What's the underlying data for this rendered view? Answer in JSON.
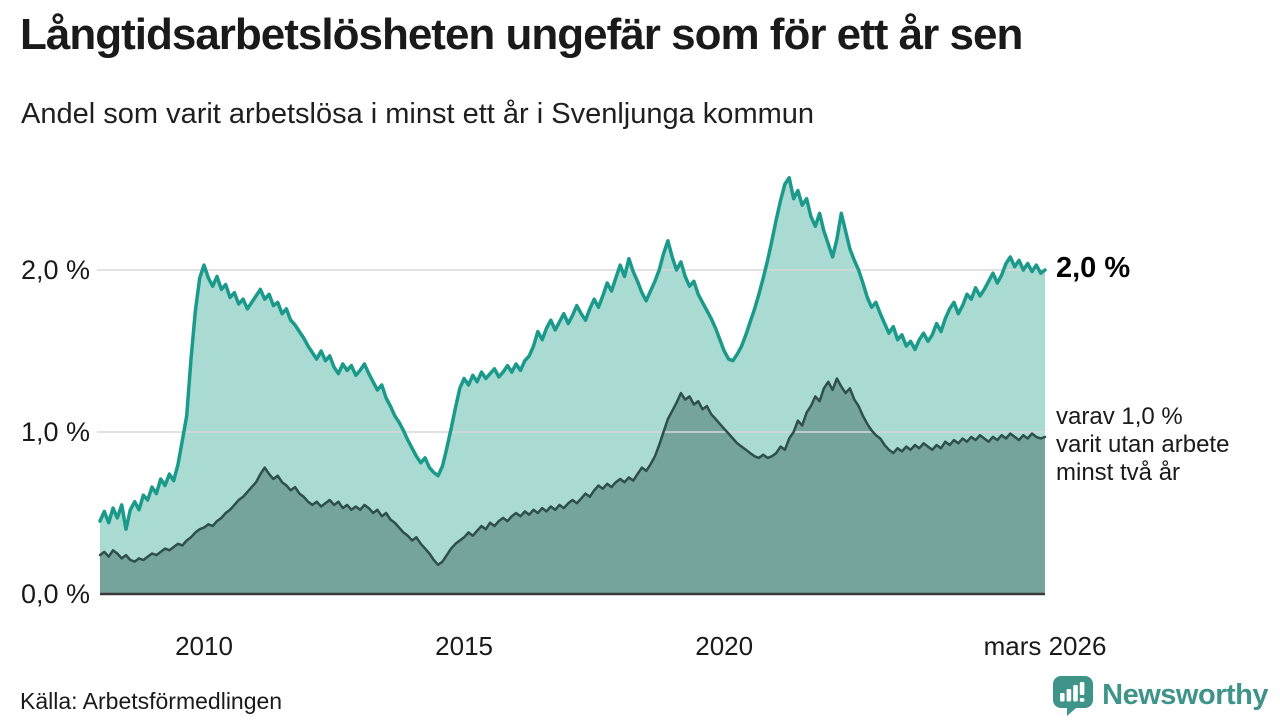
{
  "header": {
    "title": "Långtidsarbetslösheten ungefär som för ett år sen",
    "subtitle": "Andel som varit arbetslösa i minst ett år i Svenljunga kommun"
  },
  "annotations": {
    "end_value_label": "2,0 %",
    "secondary_label_lines": [
      "varav 1,0 %",
      "varit utan arbete",
      "minst två år"
    ]
  },
  "footer": {
    "source": "Källa: Arbetsförmedlingen",
    "brand": "Newsworthy"
  },
  "colors": {
    "series1_line": "#1b9a8b",
    "series1_fill": "#aadbd3",
    "series2_line": "#2e4f4b",
    "series2_fill": "#75a49d",
    "gridline": "#d8d8d8",
    "baseline": "#3a3a3a",
    "brand_teal": "#3f948a",
    "text": "#1a1a1a"
  },
  "chart_data": {
    "type": "area",
    "title": "Långtidsarbetslösheten ungefär som för ett år sen",
    "x_domain": [
      "2008-01",
      "2026-03"
    ],
    "x_unit": "month",
    "ylim": [
      0,
      2.68
    ],
    "grid": "horizontal",
    "y_ticks": [
      {
        "label": "0,0 %",
        "value": 0.0
      },
      {
        "label": "1,0 %",
        "value": 1.0
      },
      {
        "label": "2,0 %",
        "value": 2.0
      }
    ],
    "x_ticks": [
      {
        "label": "2010",
        "month_index": 24
      },
      {
        "label": "2015",
        "month_index": 84
      },
      {
        "label": "2020",
        "month_index": 144
      },
      {
        "label": "mars 2026",
        "month_index": 218
      }
    ],
    "series": [
      {
        "name": "Andel som varit arbetslösa i minst ett år",
        "end_value": 2.0,
        "values": [
          0.45,
          0.51,
          0.44,
          0.53,
          0.47,
          0.55,
          0.4,
          0.52,
          0.57,
          0.52,
          0.61,
          0.58,
          0.66,
          0.62,
          0.71,
          0.67,
          0.74,
          0.7,
          0.8,
          0.95,
          1.1,
          1.45,
          1.75,
          1.95,
          2.03,
          1.95,
          1.9,
          1.96,
          1.88,
          1.91,
          1.83,
          1.86,
          1.79,
          1.82,
          1.76,
          1.8,
          1.84,
          1.88,
          1.82,
          1.85,
          1.78,
          1.8,
          1.73,
          1.76,
          1.69,
          1.66,
          1.62,
          1.58,
          1.53,
          1.49,
          1.45,
          1.5,
          1.44,
          1.47,
          1.4,
          1.36,
          1.42,
          1.38,
          1.41,
          1.35,
          1.38,
          1.42,
          1.36,
          1.31,
          1.26,
          1.29,
          1.21,
          1.16,
          1.1,
          1.06,
          1.01,
          0.95,
          0.9,
          0.85,
          0.81,
          0.84,
          0.78,
          0.75,
          0.73,
          0.79,
          0.9,
          1.02,
          1.15,
          1.27,
          1.33,
          1.29,
          1.35,
          1.31,
          1.37,
          1.33,
          1.36,
          1.39,
          1.34,
          1.37,
          1.41,
          1.37,
          1.42,
          1.38,
          1.44,
          1.47,
          1.53,
          1.62,
          1.57,
          1.64,
          1.69,
          1.63,
          1.68,
          1.73,
          1.67,
          1.72,
          1.78,
          1.73,
          1.69,
          1.76,
          1.82,
          1.77,
          1.84,
          1.92,
          1.87,
          1.95,
          2.03,
          1.96,
          2.07,
          1.99,
          1.93,
          1.86,
          1.81,
          1.87,
          1.93,
          2.0,
          2.1,
          2.18,
          2.08,
          2.0,
          2.05,
          1.96,
          1.9,
          1.93,
          1.85,
          1.8,
          1.75,
          1.7,
          1.64,
          1.57,
          1.5,
          1.45,
          1.44,
          1.48,
          1.53,
          1.6,
          1.68,
          1.76,
          1.85,
          1.95,
          2.06,
          2.18,
          2.31,
          2.43,
          2.53,
          2.57,
          2.44,
          2.49,
          2.4,
          2.44,
          2.33,
          2.27,
          2.35,
          2.24,
          2.16,
          2.08,
          2.19,
          2.35,
          2.24,
          2.13,
          2.06,
          2.0,
          1.92,
          1.83,
          1.77,
          1.8,
          1.73,
          1.67,
          1.61,
          1.65,
          1.57,
          1.6,
          1.53,
          1.56,
          1.51,
          1.57,
          1.61,
          1.56,
          1.6,
          1.67,
          1.62,
          1.7,
          1.76,
          1.8,
          1.73,
          1.78,
          1.85,
          1.82,
          1.89,
          1.84,
          1.88,
          1.93,
          1.98,
          1.92,
          1.97,
          2.04,
          2.08,
          2.02,
          2.06,
          2.0,
          2.04,
          1.99,
          2.03,
          1.98,
          2.0
        ]
      },
      {
        "name": "varav varit utan arbete minst två år",
        "end_value": 1.0,
        "values": [
          0.24,
          0.26,
          0.23,
          0.27,
          0.25,
          0.22,
          0.24,
          0.21,
          0.2,
          0.22,
          0.21,
          0.23,
          0.25,
          0.24,
          0.26,
          0.28,
          0.27,
          0.29,
          0.31,
          0.3,
          0.33,
          0.35,
          0.38,
          0.4,
          0.41,
          0.43,
          0.42,
          0.45,
          0.47,
          0.5,
          0.52,
          0.55,
          0.58,
          0.6,
          0.63,
          0.66,
          0.69,
          0.74,
          0.78,
          0.74,
          0.71,
          0.73,
          0.69,
          0.67,
          0.64,
          0.66,
          0.62,
          0.6,
          0.57,
          0.55,
          0.57,
          0.54,
          0.56,
          0.58,
          0.55,
          0.57,
          0.53,
          0.55,
          0.52,
          0.54,
          0.52,
          0.55,
          0.53,
          0.5,
          0.52,
          0.48,
          0.5,
          0.46,
          0.44,
          0.41,
          0.38,
          0.36,
          0.33,
          0.35,
          0.31,
          0.28,
          0.25,
          0.21,
          0.18,
          0.2,
          0.24,
          0.28,
          0.31,
          0.33,
          0.35,
          0.38,
          0.36,
          0.39,
          0.42,
          0.4,
          0.44,
          0.42,
          0.45,
          0.47,
          0.45,
          0.48,
          0.5,
          0.48,
          0.51,
          0.49,
          0.52,
          0.5,
          0.53,
          0.51,
          0.54,
          0.52,
          0.55,
          0.53,
          0.56,
          0.58,
          0.56,
          0.59,
          0.62,
          0.6,
          0.64,
          0.67,
          0.65,
          0.68,
          0.66,
          0.69,
          0.71,
          0.69,
          0.72,
          0.7,
          0.74,
          0.78,
          0.76,
          0.8,
          0.85,
          0.92,
          1.0,
          1.08,
          1.13,
          1.18,
          1.24,
          1.2,
          1.22,
          1.17,
          1.19,
          1.14,
          1.16,
          1.11,
          1.08,
          1.05,
          1.02,
          0.99,
          0.96,
          0.93,
          0.91,
          0.89,
          0.87,
          0.85,
          0.84,
          0.86,
          0.84,
          0.85,
          0.87,
          0.91,
          0.89,
          0.96,
          1.0,
          1.07,
          1.04,
          1.12,
          1.16,
          1.22,
          1.19,
          1.27,
          1.31,
          1.26,
          1.33,
          1.28,
          1.24,
          1.27,
          1.2,
          1.16,
          1.1,
          1.05,
          1.01,
          0.98,
          0.96,
          0.92,
          0.89,
          0.87,
          0.9,
          0.88,
          0.91,
          0.89,
          0.92,
          0.9,
          0.93,
          0.91,
          0.89,
          0.92,
          0.9,
          0.94,
          0.92,
          0.95,
          0.93,
          0.96,
          0.94,
          0.97,
          0.95,
          0.98,
          0.96,
          0.94,
          0.97,
          0.95,
          0.98,
          0.96,
          0.99,
          0.97,
          0.95,
          0.98,
          0.96,
          0.99,
          0.97,
          0.96,
          0.97
        ]
      }
    ]
  }
}
